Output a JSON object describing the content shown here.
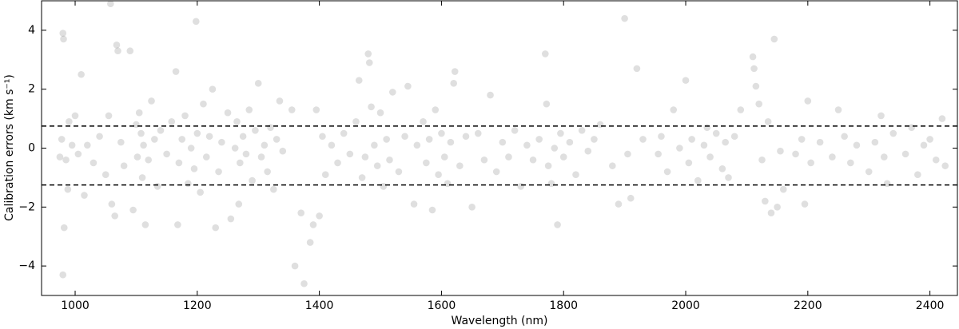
{
  "chart_data": {
    "type": "scatter",
    "xlabel": "Wavelength (nm)",
    "ylabel": "Calibration errors (km s⁻¹)",
    "xlim": [
      945,
      2445
    ],
    "ylim": [
      -5,
      5
    ],
    "xticks": [
      1000,
      1200,
      1400,
      1600,
      1800,
      2000,
      2200,
      2400
    ],
    "yticks": [
      {
        "value": -4,
        "label": "−4"
      },
      {
        "value": -2,
        "label": "−2"
      },
      0,
      2,
      4
    ],
    "hlines": [
      0.75,
      -1.25
    ],
    "grid": false,
    "x": [
      980,
      981,
      982,
      980,
      978,
      985,
      990,
      975,
      995,
      988,
      1000,
      1005,
      1010,
      1015,
      1020,
      1030,
      1040,
      1050,
      1055,
      1058,
      1060,
      1065,
      1068,
      1070,
      1075,
      1080,
      1090,
      1095,
      1100,
      1102,
      1105,
      1108,
      1110,
      1112,
      1115,
      1120,
      1125,
      1130,
      1135,
      1140,
      1150,
      1158,
      1165,
      1168,
      1170,
      1175,
      1180,
      1185,
      1190,
      1195,
      1198,
      1200,
      1205,
      1210,
      1215,
      1220,
      1225,
      1230,
      1235,
      1240,
      1250,
      1255,
      1262,
      1265,
      1268,
      1270,
      1275,
      1280,
      1285,
      1290,
      1295,
      1300,
      1305,
      1310,
      1315,
      1320,
      1325,
      1330,
      1335,
      1340,
      1355,
      1360,
      1370,
      1375,
      1385,
      1390,
      1395,
      1400,
      1405,
      1410,
      1420,
      1430,
      1440,
      1450,
      1460,
      1465,
      1470,
      1475,
      1480,
      1482,
      1485,
      1490,
      1495,
      1500,
      1505,
      1510,
      1515,
      1520,
      1530,
      1540,
      1545,
      1555,
      1560,
      1570,
      1575,
      1580,
      1585,
      1590,
      1595,
      1600,
      1605,
      1610,
      1615,
      1620,
      1622,
      1630,
      1640,
      1650,
      1660,
      1670,
      1680,
      1690,
      1700,
      1710,
      1720,
      1730,
      1740,
      1750,
      1760,
      1770,
      1772,
      1775,
      1780,
      1785,
      1790,
      1795,
      1800,
      1810,
      1820,
      1830,
      1840,
      1850,
      1860,
      1880,
      1890,
      1900,
      1905,
      1910,
      1920,
      1930,
      1955,
      1960,
      1970,
      1980,
      1990,
      2000,
      2005,
      2010,
      2020,
      2030,
      2035,
      2040,
      2050,
      2060,
      2065,
      2070,
      2080,
      2090,
      2110,
      2112,
      2115,
      2120,
      2125,
      2130,
      2135,
      2140,
      2145,
      2150,
      2155,
      2160,
      2180,
      2190,
      2195,
      2200,
      2205,
      2220,
      2240,
      2250,
      2260,
      2270,
      2280,
      2300,
      2310,
      2320,
      2325,
      2330,
      2340,
      2360,
      2370,
      2380,
      2390,
      2400,
      2410,
      2420,
      2425
    ],
    "series": [
      {
        "color": "#444444",
        "values": [
          3.9,
          3.7,
          -2.7,
          -4.3,
          0.3,
          -0.4,
          0.9,
          -0.3,
          0.1,
          -1.4,
          1.1,
          -0.2,
          2.5,
          -1.6,
          0.1,
          -0.5,
          0.4,
          -0.9,
          1.1,
          4.9,
          -1.9,
          -2.3,
          3.5,
          3.3,
          0.2,
          -0.6,
          3.3,
          -2.1,
          0.8,
          -0.3,
          1.2,
          0.5,
          -1.0,
          0.1,
          -2.6,
          -0.4,
          1.6,
          0.3,
          -1.3,
          0.6,
          -0.2,
          0.9,
          2.6,
          -2.6,
          -0.5,
          0.3,
          1.1,
          -1.2,
          0.0,
          -0.7,
          4.3,
          0.5,
          -1.5,
          1.5,
          -0.3,
          0.4,
          2.0,
          -2.7,
          -0.8,
          0.2,
          1.2,
          -2.4,
          0.0,
          0.9,
          -1.9,
          -0.5,
          0.4,
          -0.2,
          1.3,
          -1.1,
          0.6,
          2.2,
          -0.3,
          0.1,
          -0.8,
          0.7,
          -1.4,
          0.3,
          1.6,
          -0.1,
          1.3,
          -4.0,
          -2.2,
          -4.6,
          -3.2,
          -2.6,
          1.3,
          -2.3,
          0.4,
          -0.9,
          0.1,
          -0.5,
          0.5,
          -0.2,
          0.9,
          2.3,
          -1.0,
          -0.3,
          3.2,
          2.9,
          1.4,
          0.1,
          -0.6,
          1.2,
          -1.3,
          0.3,
          -0.4,
          1.9,
          -0.8,
          0.4,
          2.1,
          -1.9,
          0.1,
          0.9,
          -0.5,
          0.3,
          -2.1,
          1.3,
          -0.9,
          0.5,
          -0.3,
          -1.2,
          0.2,
          2.2,
          2.6,
          -0.6,
          0.4,
          -2.0,
          0.5,
          -0.4,
          1.8,
          -0.8,
          0.2,
          -0.3,
          0.6,
          -1.3,
          0.1,
          -0.4,
          0.3,
          3.2,
          1.5,
          -0.6,
          -1.2,
          0.0,
          -2.6,
          0.5,
          -0.3,
          0.2,
          -0.9,
          0.6,
          -0.1,
          0.3,
          0.8,
          -0.6,
          -1.9,
          4.4,
          -0.2,
          -1.7,
          2.7,
          0.3,
          -0.2,
          0.4,
          -0.8,
          1.3,
          0.0,
          2.3,
          -0.5,
          0.3,
          -1.1,
          0.1,
          0.7,
          -0.3,
          0.5,
          -0.7,
          0.2,
          -1.0,
          0.4,
          1.3,
          3.1,
          2.7,
          2.1,
          1.5,
          -0.4,
          -1.8,
          0.9,
          -2.2,
          3.7,
          -2.0,
          -0.1,
          -1.4,
          -0.2,
          0.3,
          -1.9,
          1.6,
          -0.5,
          0.2,
          -0.3,
          1.3,
          0.4,
          -0.5,
          0.1,
          -0.8,
          0.2,
          1.1,
          -0.3,
          -1.2,
          0.5,
          -0.2,
          0.7,
          -0.9,
          0.1,
          0.3,
          -0.4,
          1.0,
          -0.6
        ]
      }
    ]
  }
}
